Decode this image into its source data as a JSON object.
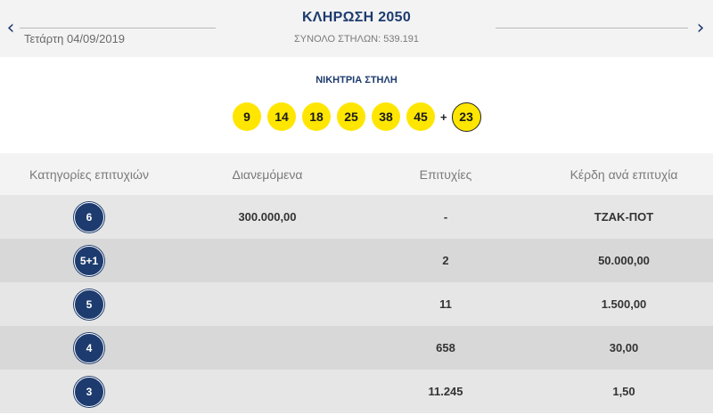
{
  "header": {
    "draw_title": "ΚΛΗΡΩΣΗ 2050",
    "date": "Τετάρτη 04/09/2019",
    "columns_total": "ΣΥΝΟΛΟ ΣΤΗΛΩΝ: 539.191",
    "prev_icon": "chevron-left-icon",
    "next_icon": "chevron-right-icon"
  },
  "winning": {
    "title": "ΝΙΚΗΤΡΙΑ ΣΤΗΛΗ",
    "numbers": [
      "9",
      "14",
      "18",
      "25",
      "38",
      "45"
    ],
    "plus": "+",
    "bonus": "23"
  },
  "table": {
    "headers": [
      "Κατηγορίες επιτυχιών",
      "Διανεμόμενα",
      "Επιτυχίες",
      "Κέρδη ανά επιτυχία"
    ],
    "rows": [
      {
        "category": "6",
        "distributed": "300.000,00",
        "winners": "-",
        "prize": "ΤΖΑΚ-ΠΟΤ"
      },
      {
        "category": "5+1",
        "distributed": "",
        "winners": "2",
        "prize": "50.000,00"
      },
      {
        "category": "5",
        "distributed": "",
        "winners": "11",
        "prize": "1.500,00"
      },
      {
        "category": "4",
        "distributed": "",
        "winners": "658",
        "prize": "30,00"
      },
      {
        "category": "3",
        "distributed": "",
        "winners": "11.245",
        "prize": "1,50"
      }
    ]
  },
  "colors": {
    "navy": "#1d3b6e",
    "ball_yellow": "#ffe600",
    "header_bg": "#f3f3f3",
    "row_light": "#e6e6e6",
    "row_dark": "#d8d8d8"
  }
}
